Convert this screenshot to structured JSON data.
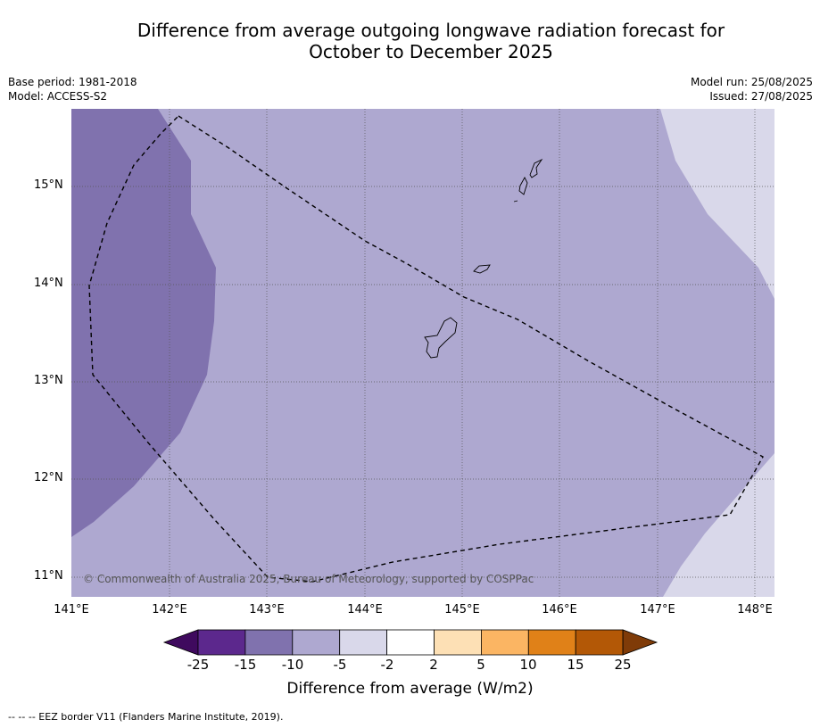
{
  "title": {
    "line1": "Difference from average outgoing longwave radiation forecast for",
    "line2": "October to December 2025"
  },
  "meta": {
    "base_period": "Base period: 1981-2018",
    "model": "Model: ACCESS-S2",
    "model_run": "Model run: 25/08/2025",
    "issued": "Issued: 27/08/2025"
  },
  "map": {
    "lat_labels": [
      "15°N",
      "14°N",
      "13°N",
      "12°N",
      "11°N"
    ],
    "lon_labels": [
      "141°E",
      "142°E",
      "143°E",
      "144°E",
      "145°E",
      "146°E",
      "147°E",
      "148°E"
    ],
    "copyright": "© Commonwealth of Australia 2025, Bureau of Meteorology, supported by COSPPac",
    "colors": {
      "minus_15_to_minus_10": "#8072ae",
      "minus_10_to_minus_5": "#aea8d0",
      "minus_5_to_minus_2": "#d9d8ea"
    }
  },
  "colorbar": {
    "ticks": [
      "-25",
      "-15",
      "-10",
      "-5",
      "-2",
      "2",
      "5",
      "10",
      "15",
      "25"
    ],
    "colors": [
      "#3f0a5e",
      "#5c288d",
      "#8072ae",
      "#aea8d0",
      "#d9d8ea",
      "#ffffff",
      "#fde0b5",
      "#fbb563",
      "#e08118",
      "#b35806",
      "#7f3b08"
    ],
    "title": "Difference from average (W/m2)"
  },
  "footnote": "--  --  -- EEZ border V11 (Flanders Marine Institute, 2019)."
}
